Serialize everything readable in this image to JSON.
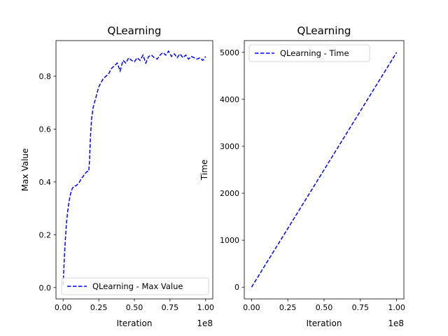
{
  "chart_data": [
    {
      "type": "line",
      "title": "QLearning",
      "xlabel": "Iteration",
      "ylabel": "Max Value",
      "x_offset_label": "1e8",
      "xlim": [
        -0.05,
        1.05
      ],
      "ylim": [
        -0.043,
        0.935
      ],
      "x_ticks": [
        0.0,
        0.25,
        0.5,
        0.75,
        1.0
      ],
      "x_tick_labels": [
        "0.00",
        "0.25",
        "0.50",
        "0.75",
        "1.00"
      ],
      "y_ticks": [
        0.0,
        0.2,
        0.4,
        0.6,
        0.8
      ],
      "y_tick_labels": [
        "0.0",
        "0.2",
        "0.4",
        "0.6",
        "0.8"
      ],
      "legend_location": "lower right",
      "series": [
        {
          "name": "QLearning - Max Value",
          "color": "#0000ff",
          "linestyle": "dashed",
          "x": [
            0.0,
            0.005,
            0.01,
            0.02,
            0.03,
            0.04,
            0.05,
            0.06,
            0.07,
            0.08,
            0.09,
            0.1,
            0.11,
            0.12,
            0.13,
            0.14,
            0.15,
            0.16,
            0.17,
            0.18,
            0.185,
            0.19,
            0.195,
            0.2,
            0.21,
            0.22,
            0.23,
            0.24,
            0.25,
            0.26,
            0.27,
            0.28,
            0.3,
            0.32,
            0.34,
            0.36,
            0.38,
            0.4,
            0.42,
            0.44,
            0.46,
            0.48,
            0.5,
            0.52,
            0.54,
            0.56,
            0.58,
            0.6,
            0.62,
            0.64,
            0.66,
            0.68,
            0.7,
            0.72,
            0.74,
            0.76,
            0.78,
            0.8,
            0.82,
            0.84,
            0.86,
            0.88,
            0.9,
            0.92,
            0.94,
            0.96,
            0.98,
            1.0
          ],
          "y": [
            0.01,
            0.07,
            0.13,
            0.22,
            0.28,
            0.32,
            0.35,
            0.37,
            0.38,
            0.385,
            0.385,
            0.39,
            0.395,
            0.405,
            0.415,
            0.42,
            0.43,
            0.435,
            0.44,
            0.44,
            0.48,
            0.55,
            0.6,
            0.64,
            0.68,
            0.7,
            0.72,
            0.74,
            0.76,
            0.77,
            0.78,
            0.79,
            0.8,
            0.81,
            0.83,
            0.84,
            0.85,
            0.82,
            0.86,
            0.85,
            0.87,
            0.86,
            0.855,
            0.87,
            0.86,
            0.88,
            0.85,
            0.875,
            0.88,
            0.87,
            0.865,
            0.88,
            0.89,
            0.88,
            0.895,
            0.875,
            0.885,
            0.87,
            0.885,
            0.87,
            0.88,
            0.865,
            0.875,
            0.87,
            0.865,
            0.87,
            0.86,
            0.875
          ]
        }
      ]
    },
    {
      "type": "line",
      "title": "QLearning",
      "xlabel": "Iteration",
      "ylabel": "Time",
      "x_offset_label": "1e8",
      "xlim": [
        -0.05,
        1.05
      ],
      "ylim": [
        -250,
        5250
      ],
      "x_ticks": [
        0.0,
        0.25,
        0.5,
        0.75,
        1.0
      ],
      "x_tick_labels": [
        "0.00",
        "0.25",
        "0.50",
        "0.75",
        "1.00"
      ],
      "y_ticks": [
        0,
        1000,
        2000,
        3000,
        4000,
        5000
      ],
      "y_tick_labels": [
        "0",
        "1000",
        "2000",
        "3000",
        "4000",
        "5000"
      ],
      "legend_location": "upper left",
      "series": [
        {
          "name": "QLearning - Time",
          "color": "#0000ff",
          "linestyle": "dashed",
          "x": [
            0.0,
            0.1,
            0.2,
            0.3,
            0.4,
            0.5,
            0.6,
            0.7,
            0.8,
            0.9,
            1.0
          ],
          "y": [
            0,
            500,
            1000,
            1500,
            2000,
            2500,
            3000,
            3500,
            4000,
            4500,
            5000
          ]
        }
      ]
    }
  ]
}
